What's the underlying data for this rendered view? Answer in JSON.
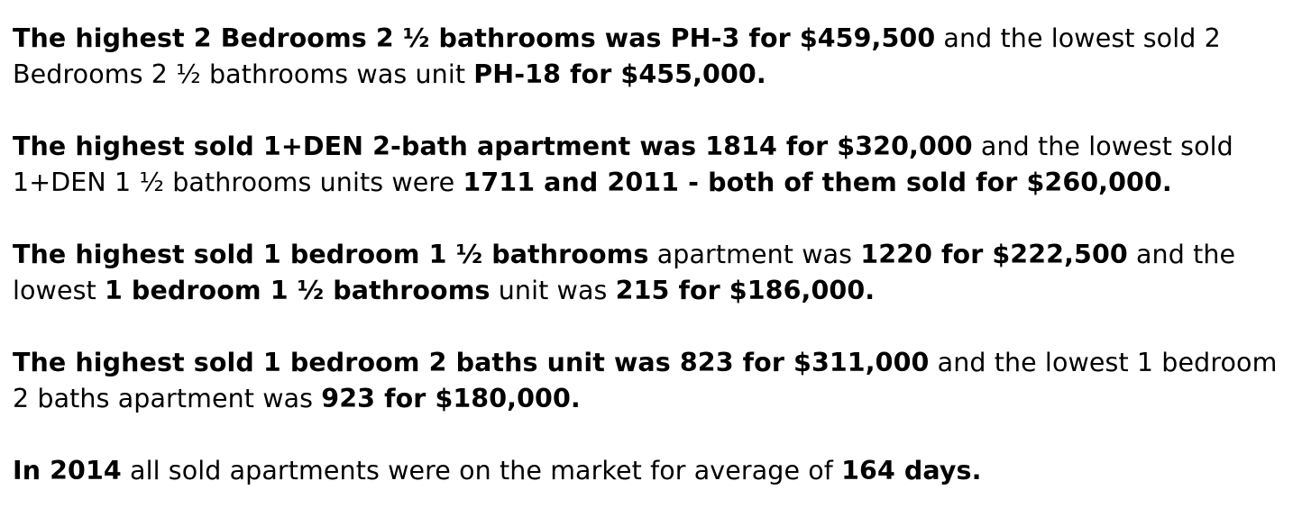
{
  "paragraphs": [
    {
      "segments": [
        {
          "text": "The highest 2 Bedrooms 2 ½ bathrooms was PH-3 for $459,500",
          "bold": true
        },
        {
          "text": " and the lowest sold 2 Bedrooms 2 ½ bathrooms was unit ",
          "bold": false
        },
        {
          "text": "PH-18 for $455,000.",
          "bold": true
        }
      ]
    },
    {
      "segments": [
        {
          "text": "The highest sold 1+DEN 2-bath apartment was 1814 for $320,000",
          "bold": true
        },
        {
          "text": " and the lowest sold 1+DEN 1 ½ bathrooms units were ",
          "bold": false
        },
        {
          "text": "1711 and 2011 - both of them sold for $260,000.",
          "bold": true
        }
      ]
    },
    {
      "segments": [
        {
          "text": "The highest sold 1 bedroom 1 ½ bathrooms",
          "bold": true
        },
        {
          "text": " apartment was ",
          "bold": false
        },
        {
          "text": "1220 for $222,500",
          "bold": true
        },
        {
          "text": " and the lowest ",
          "bold": false
        },
        {
          "text": "1 bedroom 1 ½ bathrooms",
          "bold": true
        },
        {
          "text": " unit was ",
          "bold": false
        },
        {
          "text": "215 for $186,000.",
          "bold": true
        }
      ]
    },
    {
      "segments": [
        {
          "text": "The highest sold 1 bedroom 2 baths unit was 823 for $311,000",
          "bold": true
        },
        {
          "text": " and the lowest 1 bedroom 2 baths apartment was ",
          "bold": false
        },
        {
          "text": "923 for $180,000.",
          "bold": true
        }
      ]
    },
    {
      "segments": [
        {
          "text": "In 2014",
          "bold": true
        },
        {
          "text": " all sold apartments were on the market for average of ",
          "bold": false
        },
        {
          "text": "164 days.",
          "bold": true
        }
      ]
    }
  ]
}
